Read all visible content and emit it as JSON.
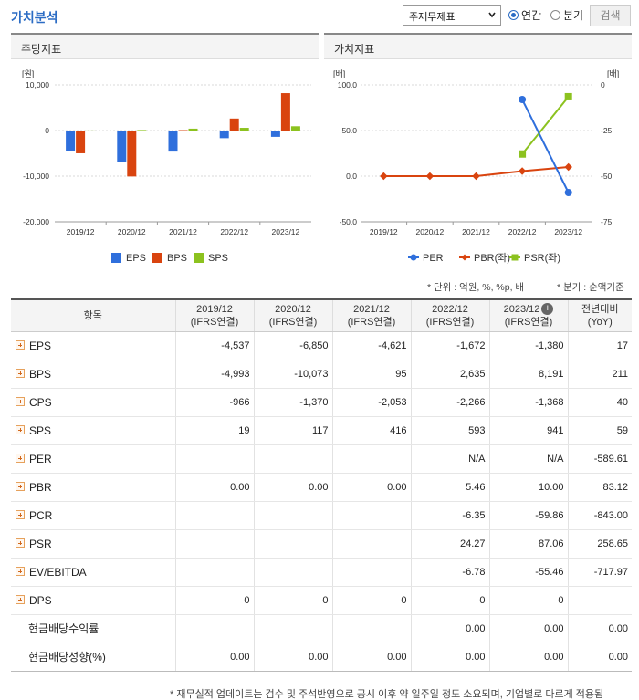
{
  "header": {
    "title": "가치분석",
    "select_value": "주재무제표",
    "radio_annual": "연간",
    "radio_quarter": "분기",
    "search_label": "검색"
  },
  "panels": {
    "left_title": "주당지표",
    "right_title": "가치지표"
  },
  "colors": {
    "eps": "#2f6fdc",
    "bps": "#d9440f",
    "sps": "#8cc21f",
    "per": "#2f6fdc",
    "pbr": "#d9440f",
    "psr": "#8cc21f"
  },
  "chart_data": [
    {
      "type": "bar",
      "ylabel": "[원]",
      "categories": [
        "2019/12",
        "2020/12",
        "2021/12",
        "2022/12",
        "2023/12"
      ],
      "ylim": [
        -20000,
        10000
      ],
      "yticks": [
        "10,000",
        "0",
        "-10,000",
        "-20,000"
      ],
      "ytick_values": [
        10000,
        0,
        -10000,
        -20000
      ],
      "series": [
        {
          "name": "EPS",
          "values": [
            -4537,
            -6850,
            -4621,
            -1672,
            -1380
          ]
        },
        {
          "name": "BPS",
          "values": [
            -4993,
            -10073,
            95,
            2635,
            8191
          ]
        },
        {
          "name": "SPS",
          "values": [
            19,
            117,
            416,
            593,
            941
          ]
        }
      ],
      "legend_position": "bottom"
    },
    {
      "type": "line",
      "ylabel_left": "[배]",
      "ylabel_right": "[배]",
      "categories": [
        "2019/12",
        "2020/12",
        "2021/12",
        "2022/12",
        "2023/12"
      ],
      "ylim_left": [
        -50,
        100
      ],
      "ylim_right": [
        -75,
        0
      ],
      "yticks_left": [
        "100.0",
        "50.0",
        "0.0",
        "-50.0"
      ],
      "yticks_left_values": [
        100,
        50,
        0,
        -50
      ],
      "yticks_right": [
        "0",
        "-25",
        "-50",
        "-75"
      ],
      "yticks_right_values": [
        0,
        -25,
        -50,
        -75
      ],
      "series": [
        {
          "name": "PER",
          "axis": "right",
          "values": [
            null,
            null,
            null,
            -8,
            -59
          ]
        },
        {
          "name": "PBR(좌)",
          "axis": "left",
          "values": [
            0.0,
            0.0,
            0.0,
            5.46,
            10.0
          ]
        },
        {
          "name": "PSR(좌)",
          "axis": "left",
          "values": [
            null,
            null,
            null,
            24.27,
            87.06
          ]
        }
      ],
      "legend_position": "bottom"
    }
  ],
  "unit_note": "* 단위 : 억원, %, %p, 배",
  "basis_note": "* 분기 : 순액기준",
  "table": {
    "col_item": "항목",
    "columns": [
      {
        "year": "2019/12",
        "basis": "(IFRS연결)"
      },
      {
        "year": "2020/12",
        "basis": "(IFRS연결)"
      },
      {
        "year": "2021/12",
        "basis": "(IFRS연결)"
      },
      {
        "year": "2022/12",
        "basis": "(IFRS연결)"
      },
      {
        "year": "2023/12",
        "basis": "(IFRS연결)"
      }
    ],
    "col_yoy_1": "전년대비",
    "col_yoy_2": "(YoY)",
    "rows": [
      {
        "label": "EPS",
        "values": [
          "-4,537",
          "-6,850",
          "-4,621",
          "-1,672",
          "-1,380",
          "17"
        ]
      },
      {
        "label": "BPS",
        "values": [
          "-4,993",
          "-10,073",
          "95",
          "2,635",
          "8,191",
          "211"
        ]
      },
      {
        "label": "CPS",
        "values": [
          "-966",
          "-1,370",
          "-2,053",
          "-2,266",
          "-1,368",
          "40"
        ]
      },
      {
        "label": "SPS",
        "values": [
          "19",
          "117",
          "416",
          "593",
          "941",
          "59"
        ]
      },
      {
        "label": "PER",
        "values": [
          "",
          "",
          "",
          "N/A",
          "N/A",
          "-589.61"
        ]
      },
      {
        "label": "PBR",
        "values": [
          "0.00",
          "0.00",
          "0.00",
          "5.46",
          "10.00",
          "83.12"
        ]
      },
      {
        "label": "PCR",
        "values": [
          "",
          "",
          "",
          "-6.35",
          "-59.86",
          "-843.00"
        ]
      },
      {
        "label": "PSR",
        "values": [
          "",
          "",
          "",
          "24.27",
          "87.06",
          "258.65"
        ]
      },
      {
        "label": "EV/EBITDA",
        "values": [
          "",
          "",
          "",
          "-6.78",
          "-55.46",
          "-717.97"
        ]
      },
      {
        "label": "DPS",
        "values": [
          "0",
          "0",
          "0",
          "0",
          "0",
          ""
        ]
      },
      {
        "label": "현금배당수익률",
        "values": [
          "",
          "",
          "",
          "0.00",
          "0.00",
          "0.00"
        ]
      },
      {
        "label": "현금배당성향(%)",
        "values": [
          "0.00",
          "0.00",
          "0.00",
          "0.00",
          "0.00",
          "0.00"
        ]
      }
    ]
  },
  "footnote": "* 재무실적 업데이트는 검수 및 주석반영으로 공시 이후 약 일주일 정도 소요되며, 기업별로 다르게 적용됨"
}
